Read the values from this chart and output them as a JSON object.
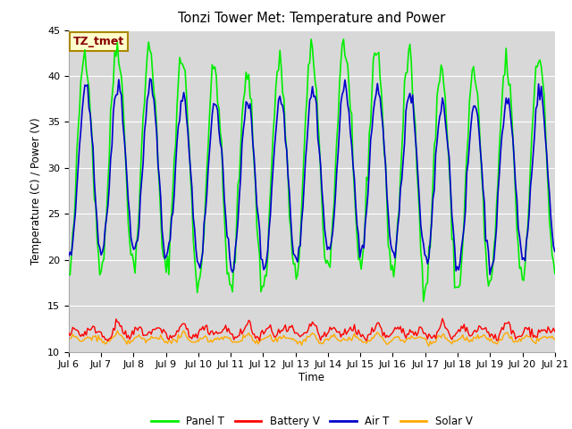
{
  "title": "Tonzi Tower Met: Temperature and Power",
  "ylabel": "Temperature (C) / Power (V)",
  "xlabel": "Time",
  "ylim": [
    10,
    45
  ],
  "annotation_text": "TZ_tmet",
  "annotation_color": "#880000",
  "annotation_bg": "#ffffcc",
  "annotation_border": "#aa8800",
  "grid_color": "#ffffff",
  "plot_bg_color": "#d8d8d8",
  "lower_band_color": "#c8c8c8",
  "fig_bg_color": "#ffffff",
  "legend_entries": [
    "Panel T",
    "Battery V",
    "Air T",
    "Solar V"
  ],
  "legend_colors": [
    "#00ee00",
    "#ff0000",
    "#0000cc",
    "#ffaa00"
  ],
  "panel_t_color": "#00ee00",
  "battery_v_color": "#ff0000",
  "air_t_color": "#0000cc",
  "solar_v_color": "#ffaa00",
  "x_tick_labels": [
    "Jul 6",
    "Jul 7",
    "Jul 8",
    "Jul 9",
    "Jul 10",
    "Jul 11",
    "Jul 12",
    "Jul 13",
    "Jul 14",
    "Jul 15",
    "Jul 16",
    "Jul 17",
    "Jul 18",
    "Jul 19",
    "Jul 20",
    "Jul 21"
  ],
  "yticks": [
    10,
    15,
    20,
    25,
    30,
    35,
    40,
    45
  ],
  "n_points": 360,
  "days": 15,
  "seed": 42
}
